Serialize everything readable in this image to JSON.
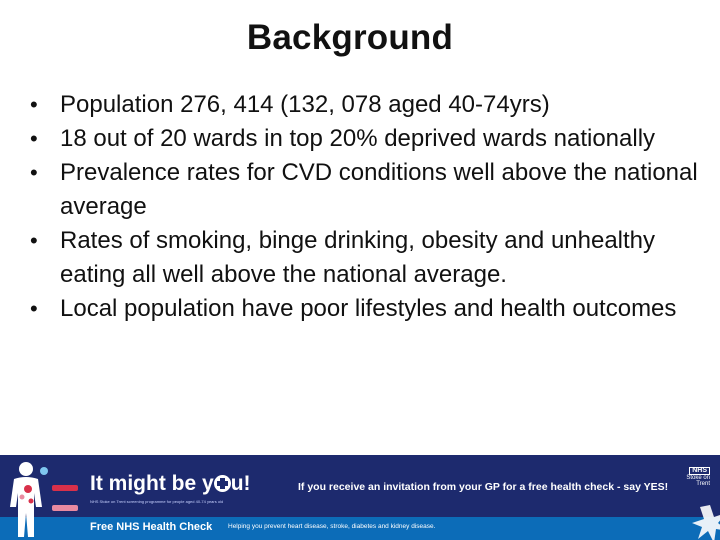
{
  "slide": {
    "title": "Background",
    "bullets": [
      "Population 276, 414  (132, 078 aged 40-74yrs)",
      "18 out of 20 wards in top 20% deprived wards nationally",
      "Prevalence rates for CVD conditions well above the national average",
      "Rates of smoking, binge drinking, obesity and unhealthy eating all well above the national average.",
      "Local population have poor lifestyles and health outcomes"
    ]
  },
  "banner": {
    "headline_start": "It might be y",
    "headline_end": "u!",
    "tiny_text": "NHS Stoke on Trent screening programme for people aged 40-74 years old",
    "invite": "If you receive an invitation from your GP for a free health check - say YES!",
    "nhs_logo": "NHS",
    "nhs_org": "Stoke on Trent",
    "health_check_title": "Free NHS Health Check",
    "health_check_subtitle": "Helping you prevent heart disease, stroke, diabetes and kidney disease.",
    "colors": {
      "banner_bg": "#1d2a6e",
      "strip_bg": "#0c6cb8",
      "box_red": "#d8304a",
      "box_pink": "#e98aa0"
    }
  }
}
